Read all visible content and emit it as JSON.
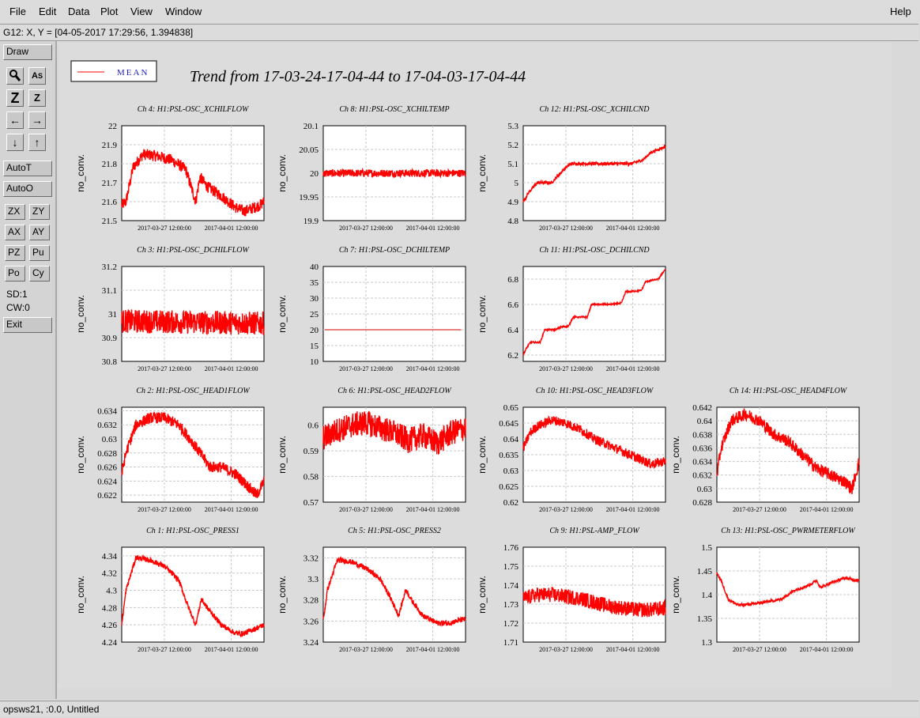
{
  "menu": {
    "file": "File",
    "edit": "Edit",
    "data": "Data",
    "plot": "Plot",
    "view": "View",
    "window": "Window",
    "help": "Help"
  },
  "coord_readout": "G12: X, Y = [04-05-2017 17:29:56, 1.394838]",
  "toolbar": {
    "draw": "Draw",
    "autot": "AutoT",
    "autoo": "AutoO",
    "zx": "ZX",
    "zy": "ZY",
    "ax": "AX",
    "ay": "AY",
    "pz": "PZ",
    "pu": "Pu",
    "po": "Po",
    "cy": "Cy",
    "sd": "SD:1",
    "cw": "CW:0",
    "exit": "Exit",
    "icons": [
      "magnify-icon",
      "text-icon",
      "zoom-large-icon",
      "zoom-small-icon",
      "arrow-left-icon",
      "arrow-right-icon",
      "arrow-down-icon",
      "arrow-up-icon"
    ]
  },
  "status": "opsws21, :0.0, Untitled",
  "colors": {
    "trace": "#ff0000",
    "legend_text": "#2020c0",
    "mean_line": "#ff0000"
  },
  "chart_data": {
    "type": "line",
    "title": "Trend from 17-03-24-17-04-44 to 17-04-03-17-04-44",
    "legend": {
      "label": "MEAN",
      "placement": "top-left"
    },
    "x_ticks": [
      "2017-03-27 12:00:00",
      "2017-04-01 12:00:00"
    ],
    "x_range": [
      "2017-03-24 17:04:44",
      "2017-04-03 17:04:44"
    ],
    "plots": [
      {
        "id": "ch4",
        "title": "Ch 4: H1:PSL-OSC_XCHILFLOW",
        "ylabel": "no_conv.",
        "ylim": [
          21.5,
          22
        ],
        "yticks": [
          "21.5",
          "21.6",
          "21.7",
          "21.8",
          "21.9",
          "22"
        ],
        "x": [
          0,
          0.3,
          0.8,
          1.5,
          2.5,
          3.5,
          4.5,
          5.2,
          5.5,
          6,
          7,
          8,
          8.6,
          9,
          9.7,
          10
        ],
        "y": [
          21.58,
          21.6,
          21.78,
          21.85,
          21.84,
          21.82,
          21.77,
          21.6,
          21.73,
          21.68,
          21.63,
          21.57,
          21.55,
          21.56,
          21.58,
          21.6
        ],
        "noise": 0.03
      },
      {
        "id": "ch8",
        "title": "Ch 8: H1:PSL-OSC_XCHILTEMP",
        "ylabel": "no_conv.",
        "ylim": [
          19.9,
          20.1
        ],
        "yticks": [
          "19.9",
          "19.95",
          "20",
          "20.05",
          "20.1"
        ],
        "x": [
          0,
          10
        ],
        "y": [
          20.0,
          20.0
        ],
        "noise": 0.008
      },
      {
        "id": "ch12",
        "title": "Ch 12: H1:PSL-OSC_XCHILCND",
        "ylabel": "no_conv.",
        "ylim": [
          4.8,
          5.3
        ],
        "yticks": [
          "4.8",
          "4.9",
          "5",
          "5.1",
          "5.2",
          "5.3"
        ],
        "x": [
          0,
          0.4,
          1,
          1.5,
          2,
          2.6,
          3,
          3.4,
          4,
          5,
          6,
          6.5,
          7,
          7.6,
          8.4,
          9,
          10
        ],
        "y": [
          4.9,
          4.95,
          5.0,
          5.0,
          5.0,
          5.05,
          5.08,
          5.1,
          5.1,
          5.1,
          5.1,
          5.1,
          5.1,
          5.1,
          5.12,
          5.16,
          5.19
        ],
        "noise": 0.008
      },
      {
        "id": "ch3",
        "title": "Ch 3: H1:PSL-OSC_DCHILFLOW",
        "ylabel": "no_conv.",
        "ylim": [
          30.8,
          31.2
        ],
        "yticks": [
          "30.8",
          "30.9",
          "31",
          "31.1",
          "31.2"
        ],
        "x": [
          0,
          10
        ],
        "y": [
          30.97,
          30.96
        ],
        "noise": 0.05
      },
      {
        "id": "ch7",
        "title": "Ch 7: H1:PSL-OSC_DCHILTEMP",
        "ylabel": "no_conv.",
        "ylim": [
          10,
          40
        ],
        "yticks": [
          "10",
          "15",
          "20",
          "25",
          "30",
          "35",
          "40"
        ],
        "x": [
          0.1,
          9.7
        ],
        "y": [
          20,
          20
        ],
        "noise": 0
      },
      {
        "id": "ch11",
        "title": "Ch 11: H1:PSL-OSC_DCHILCND",
        "ylabel": "no_conv.",
        "ylim": [
          6.15,
          6.9
        ],
        "yticks": [
          "6.2",
          "6.4",
          "6.6",
          "6.8"
        ],
        "x": [
          0,
          0.2,
          0.5,
          1.2,
          1.5,
          2.3,
          2.6,
          3.2,
          3.5,
          4.5,
          4.8,
          5.8,
          6.1,
          6.9,
          7.2,
          8.3,
          8.6,
          9.5,
          9.8,
          10
        ],
        "y": [
          6.2,
          6.25,
          6.3,
          6.3,
          6.4,
          6.4,
          6.42,
          6.43,
          6.5,
          6.5,
          6.6,
          6.6,
          6.6,
          6.61,
          6.7,
          6.71,
          6.78,
          6.8,
          6.85,
          6.88
        ],
        "noise": 0.006
      },
      {
        "id": "ch2",
        "title": "Ch 2: H1:PSL-OSC_HEAD1FLOW",
        "ylabel": "no_conv.",
        "ylim": [
          0.621,
          0.6345
        ],
        "yticks": [
          "0.622",
          "0.624",
          "0.626",
          "0.628",
          "0.63",
          "0.632",
          "0.634"
        ],
        "x": [
          0,
          0.3,
          1,
          2,
          3,
          4,
          4.8,
          5.5,
          6.2,
          7,
          8,
          9,
          9.5,
          10
        ],
        "y": [
          0.625,
          0.628,
          0.632,
          0.633,
          0.633,
          0.632,
          0.63,
          0.628,
          0.626,
          0.626,
          0.625,
          0.623,
          0.622,
          0.624
        ],
        "noise": 0.0008
      },
      {
        "id": "ch6",
        "title": "Ch 6: H1:PSL-OSC_HEAD2FLOW",
        "ylabel": "no_conv.",
        "ylim": [
          0.57,
          0.607
        ],
        "yticks": [
          "0.57",
          "0.58",
          "0.59",
          "0.6"
        ],
        "x": [
          0,
          1,
          2,
          3,
          4,
          5,
          6,
          7,
          8,
          9,
          10
        ],
        "y": [
          0.595,
          0.598,
          0.6,
          0.601,
          0.599,
          0.597,
          0.594,
          0.596,
          0.593,
          0.597,
          0.599
        ],
        "noise": 0.005
      },
      {
        "id": "ch10",
        "title": "Ch 10: H1:PSL-OSC_HEAD3FLOW",
        "ylabel": "no_conv.",
        "ylim": [
          0.62,
          0.65
        ],
        "yticks": [
          "0.62",
          "0.625",
          "0.63",
          "0.635",
          "0.64",
          "0.645",
          "0.65"
        ],
        "x": [
          0,
          0.5,
          1,
          2,
          3,
          4,
          5,
          6,
          7,
          8,
          9,
          10
        ],
        "y": [
          0.637,
          0.642,
          0.644,
          0.646,
          0.645,
          0.643,
          0.64,
          0.638,
          0.636,
          0.634,
          0.632,
          0.633
        ],
        "noise": 0.0015
      },
      {
        "id": "ch14",
        "title": "Ch 14: H1:PSL-OSC_HEAD4FLOW",
        "ylabel": "no_conv.",
        "ylim": [
          0.628,
          0.642
        ],
        "yticks": [
          "0.628",
          "0.63",
          "0.632",
          "0.634",
          "0.636",
          "0.638",
          "0.64",
          "0.642"
        ],
        "x": [
          0,
          0.3,
          1,
          2,
          3,
          4,
          5,
          6,
          7,
          8,
          9,
          9.5,
          10
        ],
        "y": [
          0.632,
          0.636,
          0.64,
          0.641,
          0.64,
          0.638,
          0.637,
          0.635,
          0.633,
          0.632,
          0.631,
          0.63,
          0.634
        ],
        "noise": 0.0009
      },
      {
        "id": "ch1",
        "title": "Ch 1: H1:PSL-OSC_PRESS1",
        "ylabel": "no_conv.",
        "ylim": [
          4.24,
          4.35
        ],
        "yticks": [
          "4.24",
          "4.26",
          "4.28",
          "4.3",
          "4.32",
          "4.34"
        ],
        "x": [
          0,
          0.3,
          1,
          2,
          3,
          4,
          4.7,
          5.2,
          5.6,
          6,
          7,
          8,
          8.6,
          9.3,
          10
        ],
        "y": [
          4.26,
          4.3,
          4.338,
          4.335,
          4.328,
          4.312,
          4.28,
          4.26,
          4.29,
          4.28,
          4.26,
          4.25,
          4.25,
          4.255,
          4.26
        ],
        "noise": 0.003
      },
      {
        "id": "ch5",
        "title": "Ch 5: H1:PSL-OSC_PRESS2",
        "ylabel": "no_conv.",
        "ylim": [
          3.24,
          3.33
        ],
        "yticks": [
          "3.24",
          "3.26",
          "3.28",
          "3.3",
          "3.32"
        ],
        "x": [
          0,
          0.3,
          1,
          2,
          3,
          4,
          4.8,
          5.3,
          5.8,
          6.2,
          7,
          8,
          8.8,
          9.4,
          10
        ],
        "y": [
          3.26,
          3.29,
          3.318,
          3.316,
          3.31,
          3.3,
          3.28,
          3.265,
          3.29,
          3.28,
          3.265,
          3.258,
          3.258,
          3.26,
          3.262
        ],
        "noise": 0.0025
      },
      {
        "id": "ch9",
        "title": "Ch 9: H1:PSL-AMP_FLOW",
        "ylabel": "no_conv.",
        "ylim": [
          1.71,
          1.76
        ],
        "yticks": [
          "1.71",
          "1.72",
          "1.73",
          "1.74",
          "1.75",
          "1.76"
        ],
        "x": [
          0,
          1,
          2,
          3,
          4,
          5,
          6,
          7,
          8,
          9,
          10
        ],
        "y": [
          1.733,
          1.735,
          1.735,
          1.734,
          1.733,
          1.731,
          1.729,
          1.728,
          1.727,
          1.727,
          1.728
        ],
        "noise": 0.004
      },
      {
        "id": "ch13",
        "title": "Ch 13: H1:PSL-OSC_PWRMETERFLOW",
        "ylabel": "no_conv.",
        "ylim": [
          1.3,
          1.5
        ],
        "yticks": [
          "1.3",
          "1.35",
          "1.4",
          "1.45",
          "1.5"
        ],
        "x": [
          0,
          0.3,
          0.8,
          1.5,
          2.5,
          3.5,
          4.5,
          5.5,
          6.5,
          7,
          7.3,
          8,
          9,
          10
        ],
        "y": [
          1.445,
          1.43,
          1.39,
          1.378,
          1.38,
          1.385,
          1.39,
          1.41,
          1.42,
          1.43,
          1.415,
          1.425,
          1.435,
          1.43
        ],
        "noise": 0.003
      }
    ]
  }
}
